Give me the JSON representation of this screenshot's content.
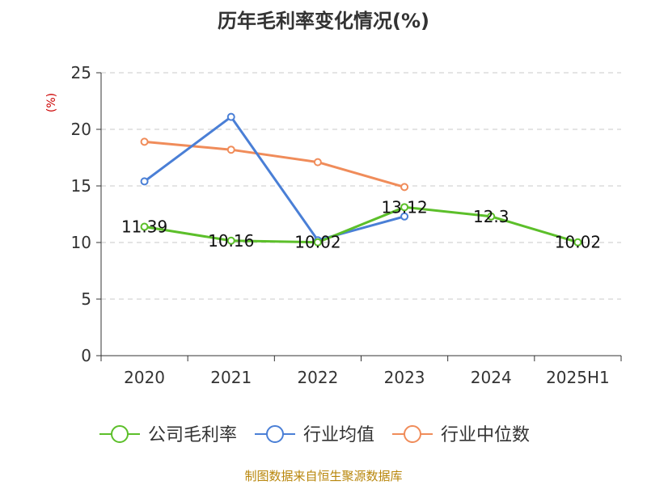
{
  "chart_data": {
    "type": "line",
    "title": "历年毛利率变化情况(%)",
    "y_unit": "(%)",
    "categories": [
      "2020",
      "2021",
      "2022",
      "2023",
      "2024",
      "2025H1"
    ],
    "ylim": [
      0,
      25
    ],
    "yticks": [
      0,
      5,
      10,
      15,
      20,
      25
    ],
    "grid": true,
    "legend_position": "bottom",
    "series": [
      {
        "name": "公司毛利率",
        "color": "#5cbf2a",
        "values": [
          11.39,
          10.16,
          10.02,
          13.12,
          12.3,
          10.02
        ],
        "labels": [
          "11.39",
          "10.16",
          "10.02",
          "13.12",
          "12.3",
          "10.02"
        ]
      },
      {
        "name": "行业均值",
        "color": "#4a7fd6",
        "values": [
          15.4,
          21.1,
          10.2,
          12.3,
          null,
          null
        ],
        "labels": []
      },
      {
        "name": "行业中位数",
        "color": "#f08c5a",
        "values": [
          18.9,
          18.2,
          17.1,
          14.9,
          null,
          null
        ],
        "labels": []
      }
    ],
    "source": "制图数据来自恒生聚源数据库"
  }
}
